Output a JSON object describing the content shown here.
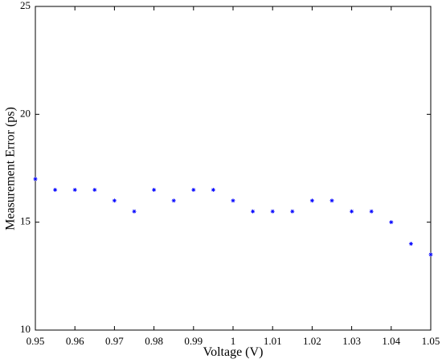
{
  "chart_data": {
    "type": "scatter",
    "x_label": "Voltage (V)",
    "y_label": "Measurement Error (ps)",
    "xlim": [
      0.95,
      1.05
    ],
    "ylim": [
      10,
      25
    ],
    "xticks": [
      0.95,
      0.96,
      0.97,
      0.98,
      0.99,
      1,
      1.01,
      1.02,
      1.03,
      1.04,
      1.05
    ],
    "yticks": [
      10,
      15,
      20,
      25
    ],
    "grid": false,
    "series": [
      {
        "color": "#0000ff",
        "x": [
          0.95,
          0.955,
          0.96,
          0.965,
          0.97,
          0.975,
          0.98,
          0.985,
          0.99,
          0.995,
          1,
          1.005,
          1.01,
          1.015,
          1.02,
          1.025,
          1.03,
          1.035,
          1.04,
          1.045,
          1.05
        ],
        "values": [
          17,
          16.5,
          16.5,
          16.5,
          16,
          15.5,
          16.5,
          16,
          16.5,
          16.5,
          16,
          15.5,
          15.5,
          15.5,
          16,
          16,
          15.5,
          15.5,
          15,
          14,
          13.5
        ]
      }
    ]
  }
}
